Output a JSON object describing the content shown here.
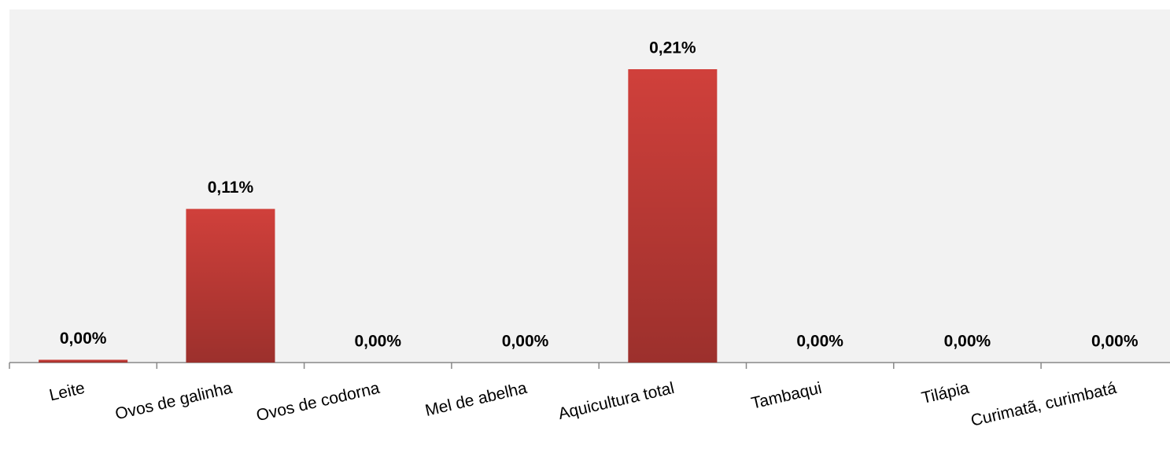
{
  "chart_data": {
    "type": "bar",
    "categories": [
      "Leite",
      "Ovos de galinha",
      "Ovos de codorna",
      "Mel de abelha",
      "Aquicultura total",
      "Tambaqui",
      "Tilápia",
      "Curimatã, curimbatá"
    ],
    "values": [
      0.002,
      0.11,
      0,
      0,
      0.21,
      0,
      0,
      0
    ],
    "value_labels": [
      "0,00%",
      "0,11%",
      "0,00%",
      "0,00%",
      "0,21%",
      "0,00%",
      "0,00%",
      "0,00%"
    ],
    "color": "#d0403b"
  }
}
